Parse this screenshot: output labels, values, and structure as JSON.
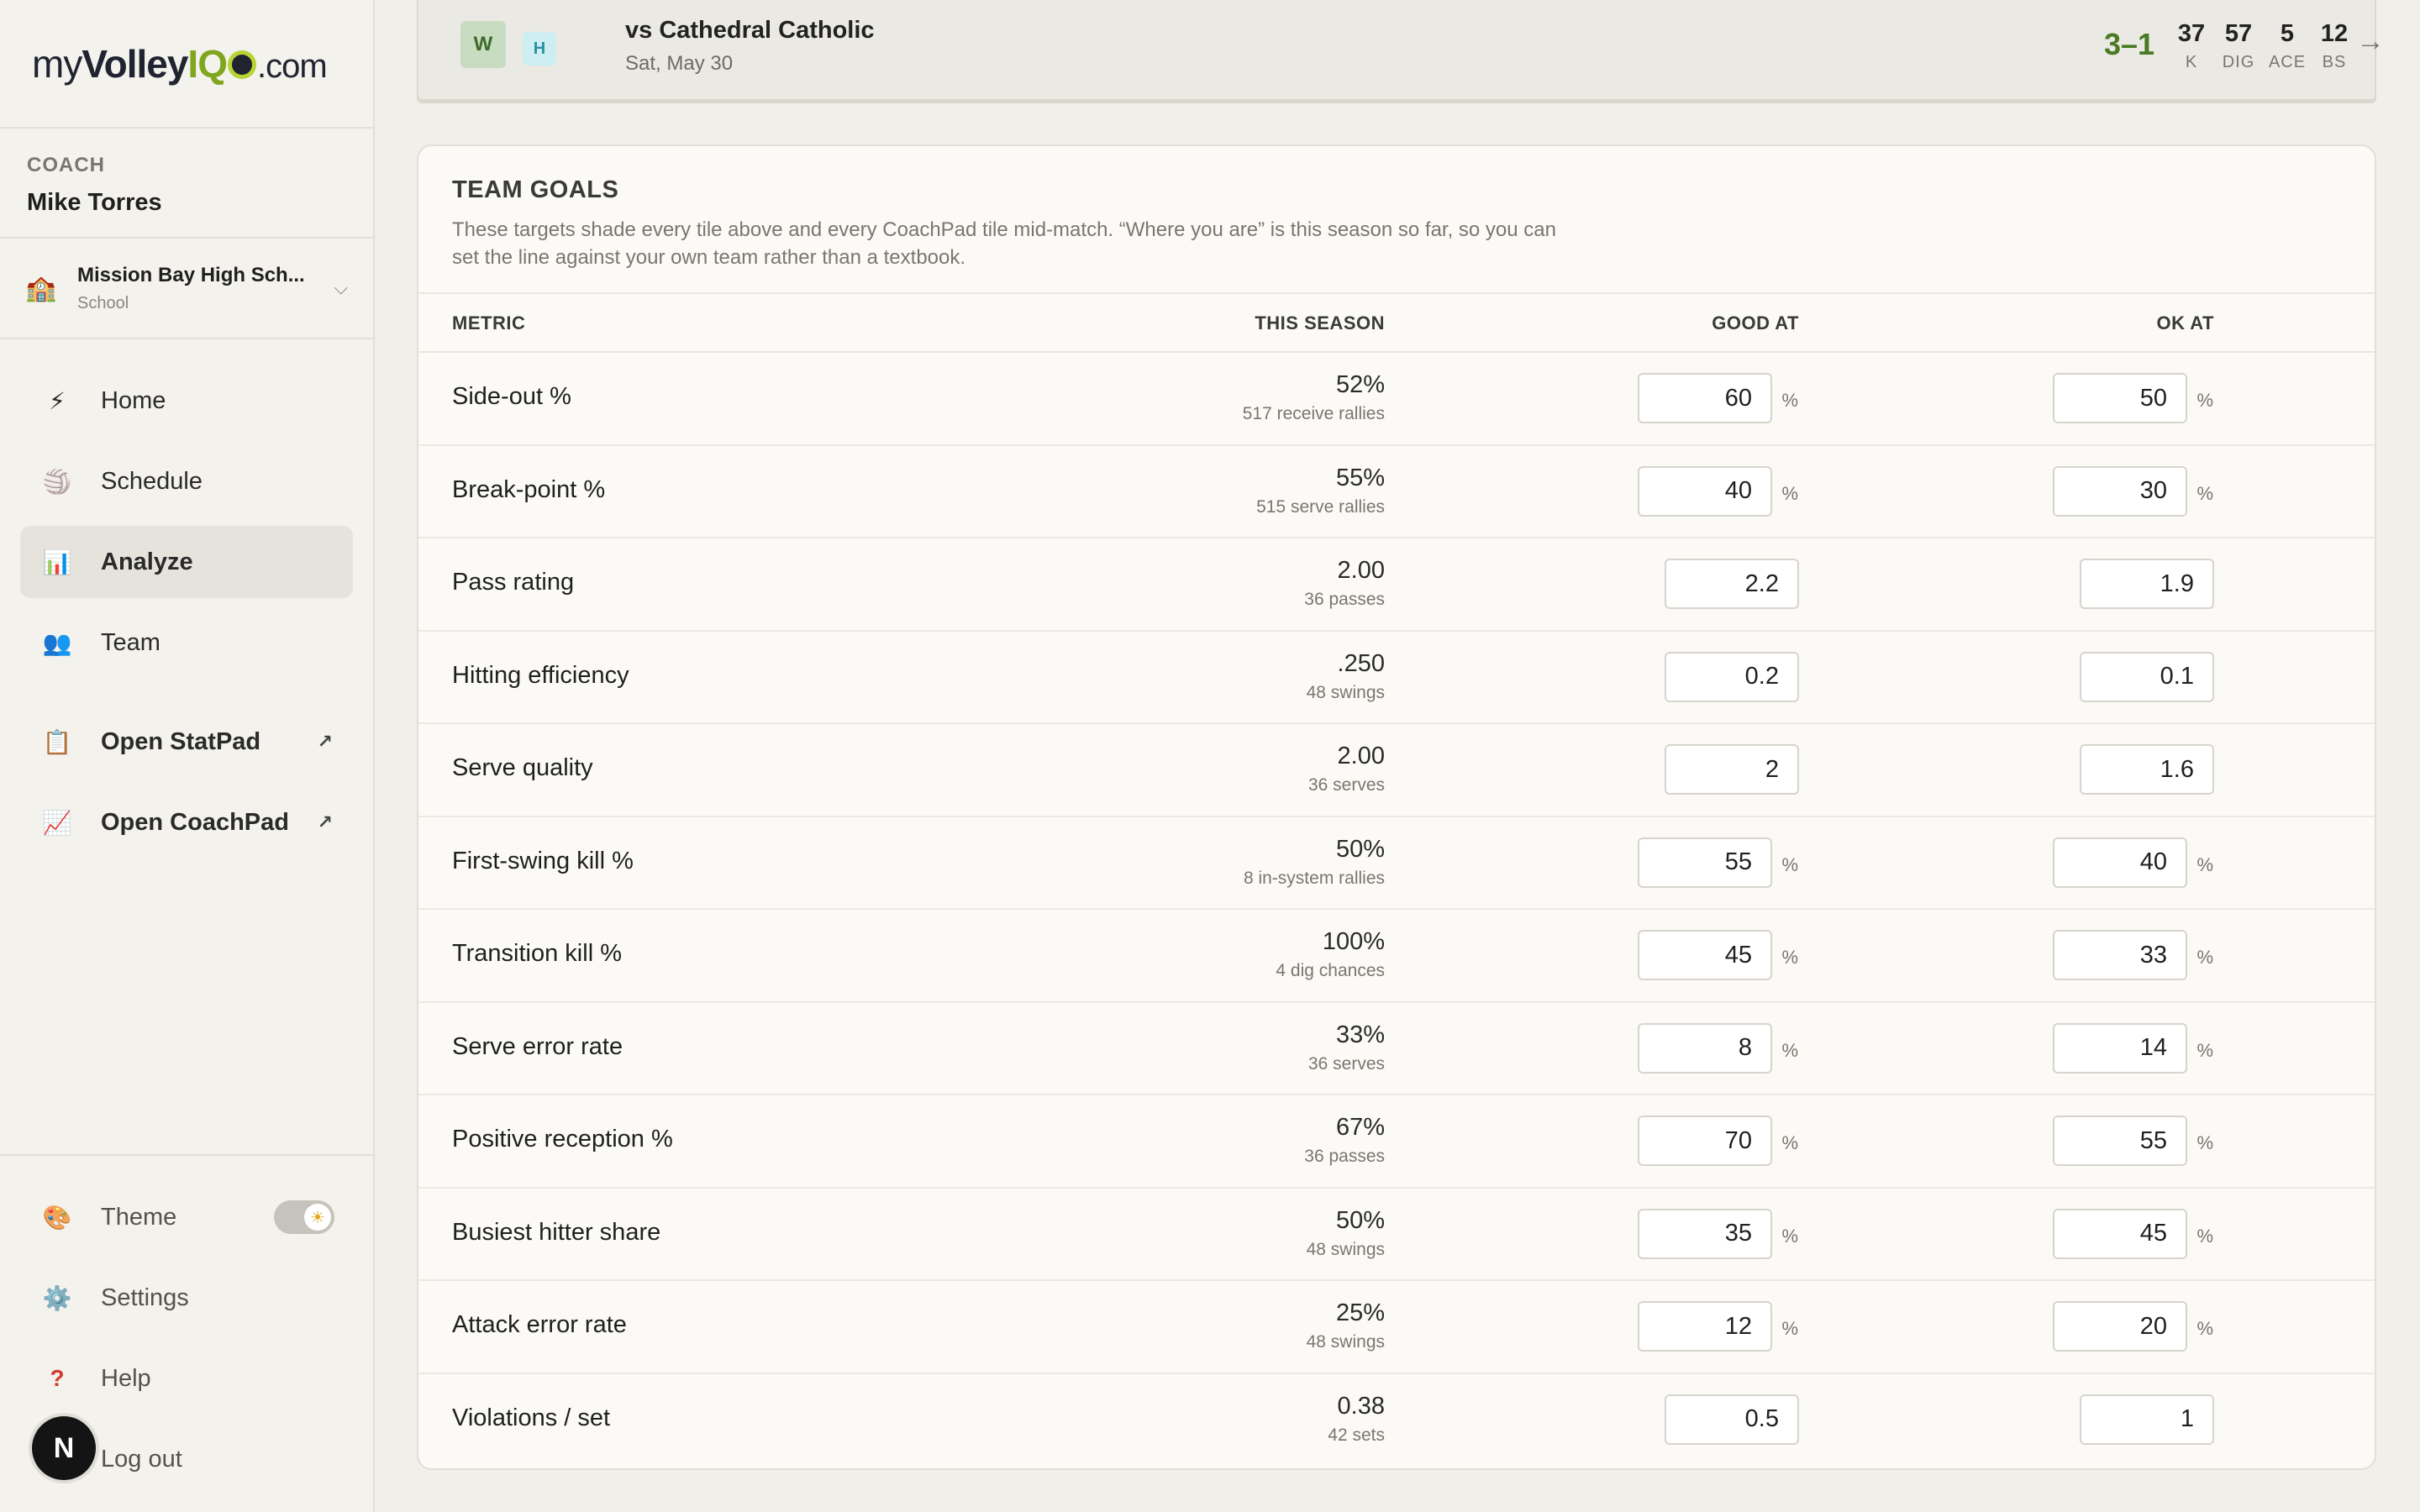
{
  "logo": {
    "pre": "my",
    "brand": "Volley",
    "iq_i": "I",
    "iq_q": "Q",
    "domain": ".com"
  },
  "coach": {
    "role": "COACH",
    "name": "Mike Torres"
  },
  "school": {
    "name": "Mission Bay High Sch...",
    "type": "School"
  },
  "nav": [
    {
      "label": "Home",
      "icon": "⚡",
      "icon_name": "lightning-icon"
    },
    {
      "label": "Schedule",
      "icon": "🏐",
      "icon_name": "volleyball-icon"
    },
    {
      "label": "Analyze",
      "icon": "📊",
      "icon_name": "bar-chart-icon"
    },
    {
      "label": "Team",
      "icon": "👥",
      "icon_name": "people-icon"
    }
  ],
  "external": [
    {
      "label": "Open StatPad",
      "icon": "📋",
      "icon_name": "clipboard-icon",
      "arrow": "↗"
    },
    {
      "label": "Open CoachPad",
      "icon": "📈",
      "icon_name": "trend-chart-icon",
      "arrow": "↗"
    }
  ],
  "bottom": {
    "theme": "Theme",
    "settings": "Settings",
    "help": "Help",
    "logout": "Log out",
    "avatar_initial": "N"
  },
  "match": {
    "result_badge": "W",
    "venue_badge": "H",
    "opponent": "vs Cathedral Catholic",
    "date": "Sat, May 30",
    "score": "3–1",
    "stats": [
      {
        "value": "37",
        "label": "K"
      },
      {
        "value": "57",
        "label": "DIG"
      },
      {
        "value": "5",
        "label": "ACE"
      },
      {
        "value": "12",
        "label": "BS"
      }
    ],
    "arrow": "→"
  },
  "goals": {
    "title": "TEAM GOALS",
    "description": "These targets shade every tile above and every CoachPad tile mid-match. “Where you are” is this season so far, so you can set the line against your own team rather than a textbook.",
    "columns": {
      "metric": "METRIC",
      "season": "THIS SEASON",
      "good": "GOOD AT",
      "ok": "OK AT"
    },
    "rows": [
      {
        "metric": "Side-out %",
        "season": "52%",
        "sub": "517 receive rallies",
        "good": "60",
        "ok": "50",
        "unit": "%"
      },
      {
        "metric": "Break-point %",
        "season": "55%",
        "sub": "515 serve rallies",
        "good": "40",
        "ok": "30",
        "unit": "%"
      },
      {
        "metric": "Pass rating",
        "season": "2.00",
        "sub": "36 passes",
        "good": "2.2",
        "ok": "1.9",
        "unit": ""
      },
      {
        "metric": "Hitting efficiency",
        "season": ".250",
        "sub": "48 swings",
        "good": "0.2",
        "ok": "0.1",
        "unit": ""
      },
      {
        "metric": "Serve quality",
        "season": "2.00",
        "sub": "36 serves",
        "good": "2",
        "ok": "1.6",
        "unit": ""
      },
      {
        "metric": "First-swing kill %",
        "season": "50%",
        "sub": "8 in-system rallies",
        "good": "55",
        "ok": "40",
        "unit": "%"
      },
      {
        "metric": "Transition kill %",
        "season": "100%",
        "sub": "4 dig chances",
        "good": "45",
        "ok": "33",
        "unit": "%"
      },
      {
        "metric": "Serve error rate",
        "season": "33%",
        "sub": "36 serves",
        "good": "8",
        "ok": "14",
        "unit": "%"
      },
      {
        "metric": "Positive reception %",
        "season": "67%",
        "sub": "36 passes",
        "good": "70",
        "ok": "55",
        "unit": "%"
      },
      {
        "metric": "Busiest hitter share",
        "season": "50%",
        "sub": "48 swings",
        "good": "35",
        "ok": "45",
        "unit": "%"
      },
      {
        "metric": "Attack error rate",
        "season": "25%",
        "sub": "48 swings",
        "good": "12",
        "ok": "20",
        "unit": "%"
      },
      {
        "metric": "Violations / set",
        "season": "0.38",
        "sub": "42 sets",
        "good": "0.5",
        "ok": "1",
        "unit": ""
      }
    ]
  },
  "colors": {
    "accent_green": "#4a7a23",
    "logo_green": "#7fa61e",
    "active_bg": "#e6e3dc"
  }
}
